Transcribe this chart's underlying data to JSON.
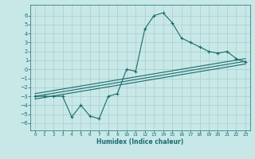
{
  "xlabel": "Humidex (Indice chaleur)",
  "bg_color": "#c8e8e8",
  "grid_color": "#a8cccc",
  "line_color": "#1a6b6b",
  "xlim": [
    -0.5,
    23.5
  ],
  "ylim": [
    -6.8,
    7.2
  ],
  "yticks": [
    -6,
    -5,
    -4,
    -3,
    -2,
    -1,
    0,
    1,
    2,
    3,
    4,
    5,
    6
  ],
  "xticks": [
    0,
    1,
    2,
    3,
    4,
    5,
    6,
    7,
    8,
    9,
    10,
    11,
    12,
    13,
    14,
    15,
    16,
    17,
    18,
    19,
    20,
    21,
    22,
    23
  ],
  "main_x": [
    0,
    1,
    2,
    3,
    4,
    5,
    6,
    7,
    8,
    9,
    10,
    11,
    12,
    13,
    14,
    15,
    16,
    17,
    18,
    19,
    20,
    21,
    22,
    23
  ],
  "main_y": [
    -3.0,
    -3.0,
    -3.0,
    -3.0,
    -5.3,
    -4.0,
    -5.2,
    -5.5,
    -3.0,
    -2.7,
    0.0,
    -0.2,
    4.5,
    6.0,
    6.3,
    5.2,
    3.5,
    3.0,
    2.5,
    2.0,
    1.8,
    2.0,
    1.2,
    0.8
  ],
  "line2_x": [
    0,
    23
  ],
  "line2_y": [
    -3.0,
    0.9
  ],
  "line3_x": [
    0,
    23
  ],
  "line3_y": [
    -2.7,
    1.2
  ],
  "line4_x": [
    0,
    23
  ],
  "line4_y": [
    -3.3,
    0.6
  ]
}
